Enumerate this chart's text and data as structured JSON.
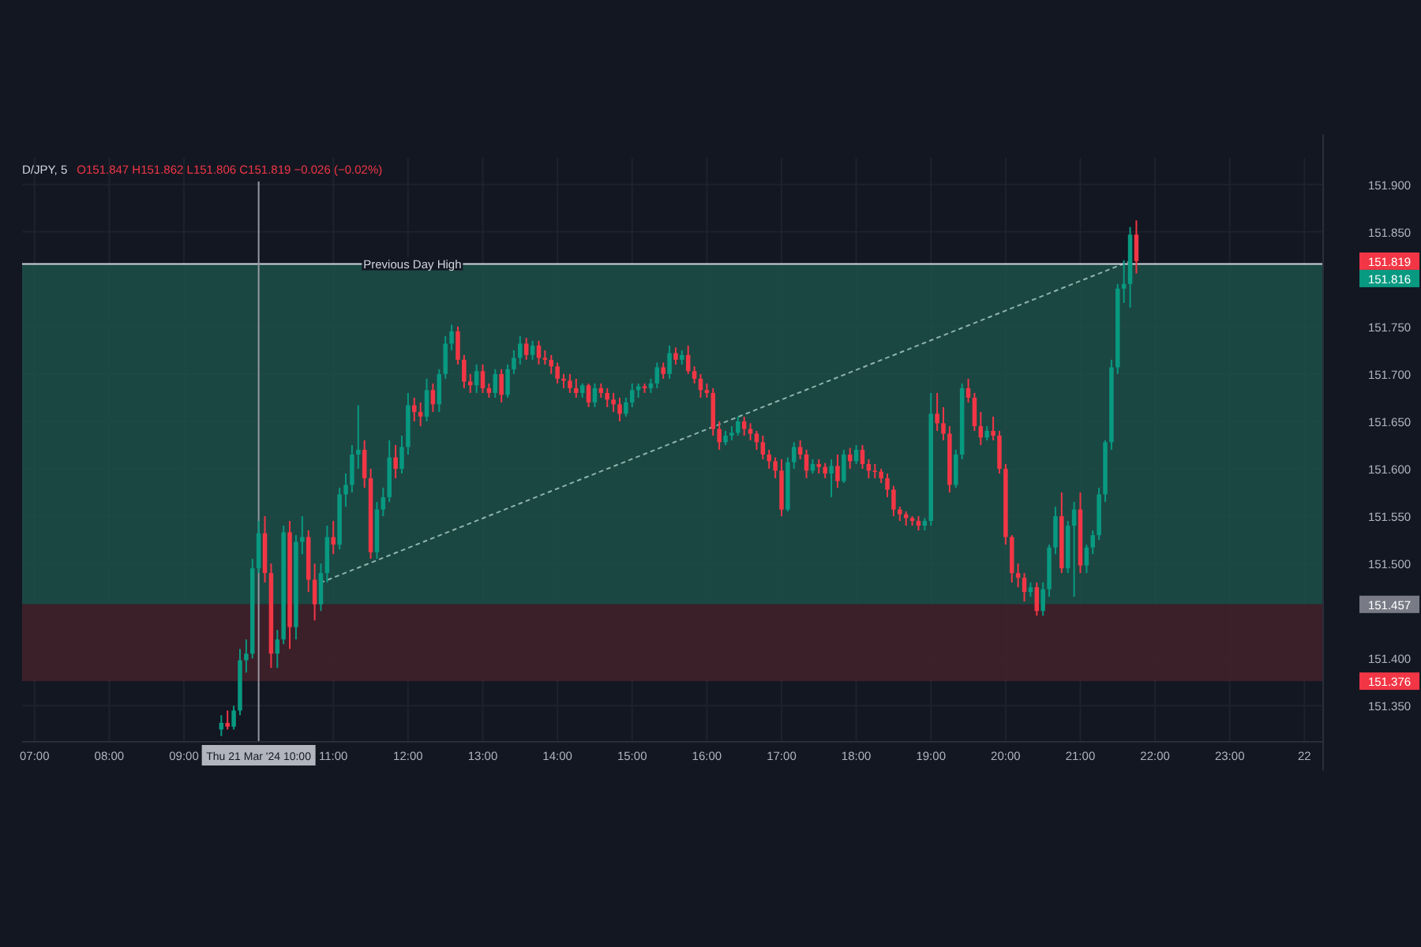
{
  "chart_data": {
    "type": "candlestick",
    "title": "D/JPY, 5",
    "subtitle": "O151.847 H151.862 L151.806 C151.819 −0.026 (−0.02%)",
    "x": [
      "2024-03-21T09:30",
      "2024-03-21T09:35",
      "2024-03-21T09:40",
      "2024-03-21T09:45",
      "2024-03-21T09:50",
      "2024-03-21T09:55",
      "2024-03-21T10:00",
      "2024-03-21T10:05",
      "2024-03-21T10:10",
      "2024-03-21T10:15",
      "2024-03-21T10:20",
      "2024-03-21T10:25",
      "2024-03-21T10:30",
      "2024-03-21T10:35",
      "2024-03-21T10:40",
      "2024-03-21T10:45",
      "2024-03-21T10:50",
      "2024-03-21T10:55",
      "2024-03-21T11:00",
      "2024-03-21T11:05",
      "2024-03-21T11:10",
      "2024-03-21T11:15",
      "2024-03-21T11:20",
      "2024-03-21T11:25",
      "2024-03-21T11:30",
      "2024-03-21T11:35",
      "2024-03-21T11:40",
      "2024-03-21T11:45",
      "2024-03-21T11:50",
      "2024-03-21T11:55",
      "2024-03-21T12:00",
      "2024-03-21T12:05",
      "2024-03-21T12:10",
      "2024-03-21T12:15",
      "2024-03-21T12:20",
      "2024-03-21T12:25",
      "2024-03-21T12:30",
      "2024-03-21T12:35",
      "2024-03-21T12:40",
      "2024-03-21T12:45",
      "2024-03-21T12:50",
      "2024-03-21T12:55",
      "2024-03-21T13:00",
      "2024-03-21T13:05",
      "2024-03-21T13:10",
      "2024-03-21T13:15",
      "2024-03-21T13:20",
      "2024-03-21T13:25",
      "2024-03-21T13:30",
      "2024-03-21T13:35",
      "2024-03-21T13:40",
      "2024-03-21T13:45",
      "2024-03-21T13:50",
      "2024-03-21T13:55",
      "2024-03-21T14:00",
      "2024-03-21T14:05",
      "2024-03-21T14:10",
      "2024-03-21T14:15",
      "2024-03-21T14:20",
      "2024-03-21T14:25",
      "2024-03-21T14:30",
      "2024-03-21T14:35",
      "2024-03-21T14:40",
      "2024-03-21T14:45",
      "2024-03-21T14:50",
      "2024-03-21T14:55",
      "2024-03-21T15:00",
      "2024-03-21T15:05",
      "2024-03-21T15:10",
      "2024-03-21T15:15",
      "2024-03-21T15:20",
      "2024-03-21T15:25",
      "2024-03-21T15:30",
      "2024-03-21T15:35",
      "2024-03-21T15:40",
      "2024-03-21T15:45",
      "2024-03-21T15:50",
      "2024-03-21T15:55",
      "2024-03-21T16:00",
      "2024-03-21T16:05",
      "2024-03-21T16:10",
      "2024-03-21T16:15",
      "2024-03-21T16:20",
      "2024-03-21T16:25",
      "2024-03-21T16:30",
      "2024-03-21T16:35",
      "2024-03-21T16:40",
      "2024-03-21T16:45",
      "2024-03-21T16:50",
      "2024-03-21T16:55",
      "2024-03-21T17:00",
      "2024-03-21T17:05",
      "2024-03-21T17:10",
      "2024-03-21T17:15",
      "2024-03-21T17:20",
      "2024-03-21T17:25",
      "2024-03-21T17:30",
      "2024-03-21T17:35",
      "2024-03-21T17:40",
      "2024-03-21T17:45",
      "2024-03-21T17:50",
      "2024-03-21T17:55",
      "2024-03-21T18:00",
      "2024-03-21T18:05",
      "2024-03-21T18:10",
      "2024-03-21T18:15",
      "2024-03-21T18:20",
      "2024-03-21T18:25",
      "2024-03-21T18:30",
      "2024-03-21T18:35",
      "2024-03-21T18:40",
      "2024-03-21T18:45",
      "2024-03-21T18:50",
      "2024-03-21T18:55",
      "2024-03-21T19:00",
      "2024-03-21T19:05",
      "2024-03-21T19:10",
      "2024-03-21T19:15",
      "2024-03-21T19:20",
      "2024-03-21T19:25",
      "2024-03-21T19:30",
      "2024-03-21T19:35",
      "2024-03-21T19:40",
      "2024-03-21T19:45",
      "2024-03-21T19:50",
      "2024-03-21T19:55",
      "2024-03-21T20:00",
      "2024-03-21T20:05",
      "2024-03-21T20:10",
      "2024-03-21T20:15",
      "2024-03-21T20:20",
      "2024-03-21T20:25",
      "2024-03-21T20:30",
      "2024-03-21T20:35",
      "2024-03-21T20:40",
      "2024-03-21T20:45",
      "2024-03-21T20:50",
      "2024-03-21T20:55",
      "2024-03-21T21:00",
      "2024-03-21T21:05",
      "2024-03-21T21:10",
      "2024-03-21T21:15",
      "2024-03-21T21:20",
      "2024-03-21T21:25",
      "2024-03-21T21:30",
      "2024-03-21T21:35",
      "2024-03-21T21:40",
      "2024-03-21T21:45"
    ],
    "ohlc": [
      [
        151.325,
        151.34,
        151.318,
        151.332
      ],
      [
        151.332,
        151.345,
        151.325,
        151.328
      ],
      [
        151.328,
        151.35,
        151.325,
        151.345
      ],
      [
        151.345,
        151.41,
        151.34,
        151.398
      ],
      [
        151.398,
        151.42,
        151.385,
        151.405
      ],
      [
        151.405,
        151.505,
        151.4,
        151.495
      ],
      [
        151.495,
        151.545,
        151.49,
        151.532
      ],
      [
        151.532,
        151.55,
        151.48,
        151.49
      ],
      [
        151.49,
        151.5,
        151.39,
        151.405
      ],
      [
        151.405,
        151.43,
        151.39,
        151.42
      ],
      [
        151.42,
        151.54,
        151.415,
        151.533
      ],
      [
        151.533,
        151.545,
        151.41,
        151.433
      ],
      [
        151.433,
        151.53,
        151.42,
        151.523
      ],
      [
        151.523,
        151.55,
        151.51,
        151.528
      ],
      [
        151.528,
        151.535,
        151.47,
        151.483
      ],
      [
        151.483,
        151.5,
        151.44,
        151.457
      ],
      [
        151.457,
        151.5,
        151.45,
        151.49
      ],
      [
        151.49,
        151.54,
        151.48,
        151.528
      ],
      [
        151.528,
        151.545,
        151.51,
        151.52
      ],
      [
        151.52,
        151.58,
        151.515,
        151.573
      ],
      [
        151.573,
        151.595,
        151.56,
        151.583
      ],
      [
        151.583,
        151.625,
        151.575,
        151.615
      ],
      [
        151.615,
        151.667,
        151.6,
        151.62
      ],
      [
        151.62,
        151.63,
        151.58,
        151.59
      ],
      [
        151.59,
        151.6,
        151.505,
        151.512
      ],
      [
        151.512,
        151.565,
        151.505,
        151.557
      ],
      [
        151.557,
        151.58,
        151.55,
        151.57
      ],
      [
        151.57,
        151.63,
        151.565,
        151.612
      ],
      [
        151.612,
        151.625,
        151.59,
        151.6
      ],
      [
        151.6,
        151.635,
        151.595,
        151.623
      ],
      [
        151.623,
        151.68,
        151.615,
        151.667
      ],
      [
        151.667,
        151.675,
        151.65,
        151.66
      ],
      [
        151.66,
        151.67,
        151.645,
        151.655
      ],
      [
        151.655,
        151.695,
        151.65,
        151.683
      ],
      [
        151.683,
        151.69,
        151.66,
        151.668
      ],
      [
        151.668,
        151.705,
        151.66,
        151.7
      ],
      [
        151.7,
        151.74,
        151.695,
        151.732
      ],
      [
        151.732,
        151.752,
        151.725,
        151.745
      ],
      [
        151.745,
        151.75,
        151.71,
        151.715
      ],
      [
        151.715,
        151.72,
        151.685,
        151.692
      ],
      [
        151.692,
        151.7,
        151.68,
        151.688
      ],
      [
        151.688,
        151.71,
        151.68,
        151.703
      ],
      [
        151.703,
        151.71,
        151.68,
        151.685
      ],
      [
        151.685,
        151.69,
        151.675,
        151.68
      ],
      [
        151.68,
        151.705,
        151.675,
        151.7
      ],
      [
        151.7,
        151.705,
        151.67,
        151.678
      ],
      [
        151.678,
        151.71,
        151.675,
        151.705
      ],
      [
        151.705,
        151.725,
        151.7,
        151.717
      ],
      [
        151.717,
        151.74,
        151.71,
        151.732
      ],
      [
        151.732,
        151.738,
        151.715,
        151.72
      ],
      [
        151.72,
        151.735,
        151.715,
        151.73
      ],
      [
        151.73,
        151.735,
        151.71,
        151.717
      ],
      [
        151.717,
        151.725,
        151.71,
        151.715
      ],
      [
        151.715,
        151.72,
        151.7,
        151.708
      ],
      [
        151.708,
        151.712,
        151.69,
        151.695
      ],
      [
        151.695,
        151.7,
        151.685,
        151.693
      ],
      [
        151.693,
        151.7,
        151.68,
        151.685
      ],
      [
        151.685,
        151.695,
        151.675,
        151.68
      ],
      [
        151.68,
        151.69,
        151.675,
        151.688
      ],
      [
        151.688,
        151.69,
        151.665,
        151.67
      ],
      [
        151.67,
        151.69,
        151.665,
        151.685
      ],
      [
        151.685,
        151.69,
        151.675,
        151.68
      ],
      [
        151.68,
        151.685,
        151.665,
        151.673
      ],
      [
        151.673,
        151.68,
        151.66,
        151.668
      ],
      [
        151.668,
        151.675,
        151.65,
        151.658
      ],
      [
        151.658,
        151.675,
        151.655,
        151.67
      ],
      [
        151.67,
        151.69,
        151.665,
        151.683
      ],
      [
        151.683,
        151.69,
        151.675,
        151.687
      ],
      [
        151.687,
        151.69,
        151.68,
        151.685
      ],
      [
        151.685,
        151.695,
        151.68,
        151.69
      ],
      [
        151.69,
        151.712,
        151.685,
        151.707
      ],
      [
        151.707,
        151.712,
        151.695,
        151.7
      ],
      [
        151.7,
        151.73,
        151.695,
        151.722
      ],
      [
        151.722,
        151.728,
        151.71,
        151.715
      ],
      [
        151.715,
        151.725,
        151.71,
        151.72
      ],
      [
        151.72,
        151.73,
        151.7,
        151.703
      ],
      [
        151.703,
        151.708,
        151.69,
        151.695
      ],
      [
        151.695,
        151.7,
        151.675,
        151.683
      ],
      [
        151.683,
        151.69,
        151.675,
        151.68
      ],
      [
        151.68,
        151.685,
        151.635,
        151.642
      ],
      [
        151.642,
        151.65,
        151.62,
        151.628
      ],
      [
        151.628,
        151.64,
        151.625,
        151.635
      ],
      [
        151.635,
        151.645,
        151.63,
        151.638
      ],
      [
        151.638,
        151.655,
        151.635,
        151.65
      ],
      [
        151.65,
        151.655,
        151.635,
        151.642
      ],
      [
        151.642,
        151.648,
        151.63,
        151.637
      ],
      [
        151.637,
        151.64,
        151.62,
        151.628
      ],
      [
        151.628,
        151.635,
        151.61,
        151.615
      ],
      [
        151.615,
        151.62,
        151.6,
        151.608
      ],
      [
        151.608,
        151.612,
        151.59,
        151.598
      ],
      [
        151.598,
        151.61,
        151.55,
        151.557
      ],
      [
        151.557,
        151.612,
        151.555,
        151.607
      ],
      [
        151.607,
        151.628,
        151.6,
        151.623
      ],
      [
        151.623,
        151.63,
        151.61,
        151.615
      ],
      [
        151.615,
        151.62,
        151.59,
        151.598
      ],
      [
        151.598,
        151.61,
        151.595,
        151.605
      ],
      [
        151.605,
        151.61,
        151.595,
        151.602
      ],
      [
        151.602,
        151.606,
        151.59,
        151.595
      ],
      [
        151.595,
        151.61,
        151.57,
        151.603
      ],
      [
        151.603,
        151.615,
        151.58,
        151.587
      ],
      [
        151.587,
        151.62,
        151.585,
        151.615
      ],
      [
        151.615,
        151.622,
        151.6,
        151.608
      ],
      [
        151.608,
        151.625,
        151.605,
        151.62
      ],
      [
        151.62,
        151.625,
        151.6,
        151.605
      ],
      [
        151.605,
        151.61,
        151.59,
        151.598
      ],
      [
        151.598,
        151.605,
        151.59,
        151.597
      ],
      [
        151.597,
        151.6,
        151.585,
        151.59
      ],
      [
        151.59,
        151.595,
        151.57,
        151.578
      ],
      [
        151.578,
        151.582,
        151.55,
        151.557
      ],
      [
        151.557,
        151.56,
        151.545,
        151.552
      ],
      [
        151.552,
        151.555,
        151.54,
        151.548
      ],
      [
        151.548,
        151.55,
        151.54,
        151.545
      ],
      [
        151.545,
        151.55,
        151.535,
        151.54
      ],
      [
        151.54,
        151.548,
        151.535,
        151.545
      ],
      [
        151.545,
        151.68,
        151.54,
        151.658
      ],
      [
        151.658,
        151.68,
        151.64,
        151.648
      ],
      [
        151.648,
        151.665,
        151.63,
        151.637
      ],
      [
        151.637,
        151.645,
        151.575,
        151.583
      ],
      [
        151.583,
        151.62,
        151.58,
        151.615
      ],
      [
        151.615,
        151.69,
        151.61,
        151.685
      ],
      [
        151.685,
        151.695,
        151.67,
        151.675
      ],
      [
        151.675,
        151.68,
        151.64,
        151.645
      ],
      [
        151.645,
        151.66,
        151.625,
        151.633
      ],
      [
        151.633,
        151.645,
        151.63,
        151.64
      ],
      [
        151.64,
        151.655,
        151.63,
        151.635
      ],
      [
        151.635,
        151.64,
        151.595,
        151.6
      ],
      [
        151.6,
        151.605,
        151.52,
        151.528
      ],
      [
        151.528,
        151.53,
        151.48,
        151.49
      ],
      [
        151.49,
        151.5,
        151.475,
        151.485
      ],
      [
        151.485,
        151.49,
        151.46,
        151.47
      ],
      [
        151.47,
        151.48,
        151.465,
        151.475
      ],
      [
        151.475,
        151.48,
        151.445,
        151.45
      ],
      [
        151.45,
        151.48,
        151.445,
        151.473
      ],
      [
        151.473,
        151.52,
        151.465,
        151.517
      ],
      [
        151.517,
        151.56,
        151.51,
        151.55
      ],
      [
        151.55,
        151.575,
        151.49,
        151.495
      ],
      [
        151.495,
        151.545,
        151.49,
        151.54
      ],
      [
        151.54,
        151.565,
        151.465,
        151.557
      ],
      [
        151.557,
        151.575,
        151.49,
        151.498
      ],
      [
        151.498,
        151.52,
        151.49,
        151.517
      ],
      [
        151.517,
        151.535,
        151.51,
        151.53
      ],
      [
        151.53,
        151.58,
        151.525,
        151.573
      ],
      [
        151.573,
        151.63,
        151.565,
        151.628
      ],
      [
        151.628,
        151.715,
        151.62,
        151.707
      ],
      [
        151.707,
        151.795,
        151.7,
        151.79
      ],
      [
        151.79,
        151.82,
        151.775,
        151.795
      ],
      [
        151.795,
        151.855,
        151.77,
        151.847
      ],
      [
        151.847,
        151.862,
        151.806,
        151.819
      ]
    ],
    "series": [
      {
        "type": "line",
        "x": [
          "2024-03-21T10:50",
          "2024-03-21T21:40"
        ],
        "values": [
          151.48,
          151.819
        ],
        "color": "#8fb3ad",
        "line_style": "dotted"
      }
    ],
    "xlim": [
      "2024-03-21T06:50",
      "2024-03-22T00:15"
    ],
    "xticks": [
      {
        "value": "2024-03-21T07:00",
        "label": "07:00"
      },
      {
        "value": "2024-03-21T08:00",
        "label": "08:00"
      },
      {
        "value": "2024-03-21T09:00",
        "label": "09:00"
      },
      {
        "value": "2024-03-21T11:00",
        "label": "11:00"
      },
      {
        "value": "2024-03-21T12:00",
        "label": "12:00"
      },
      {
        "value": "2024-03-21T13:00",
        "label": "13:00"
      },
      {
        "value": "2024-03-21T14:00",
        "label": "14:00"
      },
      {
        "value": "2024-03-21T15:00",
        "label": "15:00"
      },
      {
        "value": "2024-03-21T16:00",
        "label": "16:00"
      },
      {
        "value": "2024-03-21T17:00",
        "label": "17:00"
      },
      {
        "value": "2024-03-21T18:00",
        "label": "18:00"
      },
      {
        "value": "2024-03-21T19:00",
        "label": "19:00"
      },
      {
        "value": "2024-03-21T20:00",
        "label": "20:00"
      },
      {
        "value": "2024-03-21T21:00",
        "label": "21:00"
      },
      {
        "value": "2024-03-21T22:00",
        "label": "22:00"
      },
      {
        "value": "2024-03-21T23:00",
        "label": "23:00"
      },
      {
        "value": "2024-03-22T00:00",
        "label": "22"
      }
    ],
    "ylim": [
      151.312,
      151.928
    ],
    "yticks": [
      {
        "value": 151.35,
        "label": "151.350"
      },
      {
        "value": 151.4,
        "label": "151.400"
      },
      {
        "value": 151.5,
        "label": "151.500"
      },
      {
        "value": 151.55,
        "label": "151.550"
      },
      {
        "value": 151.6,
        "label": "151.600"
      },
      {
        "value": 151.65,
        "label": "151.650"
      },
      {
        "value": 151.7,
        "label": "151.700"
      },
      {
        "value": 151.75,
        "label": "151.750"
      },
      {
        "value": 151.85,
        "label": "151.850"
      },
      {
        "value": 151.9,
        "label": "151.900"
      }
    ],
    "grid": true,
    "bands": [
      {
        "axis": "y",
        "from": 151.457,
        "to": 151.816,
        "color": "#1d4d47"
      },
      {
        "axis": "y",
        "from": 151.376,
        "to": 151.457,
        "color": "#40202a"
      }
    ],
    "ref_lines": [
      {
        "axis": "y",
        "value": 151.816,
        "label": "Previous Day High",
        "color": "#d1d4dc"
      },
      {
        "axis": "x",
        "value": "2024-03-21T10:00",
        "label": "Thu 21 Mar '24  10:00",
        "color": "#9598a1"
      }
    ],
    "annotations": [
      "151.819",
      "151.816",
      "151.457",
      "151.376"
    ]
  }
}
